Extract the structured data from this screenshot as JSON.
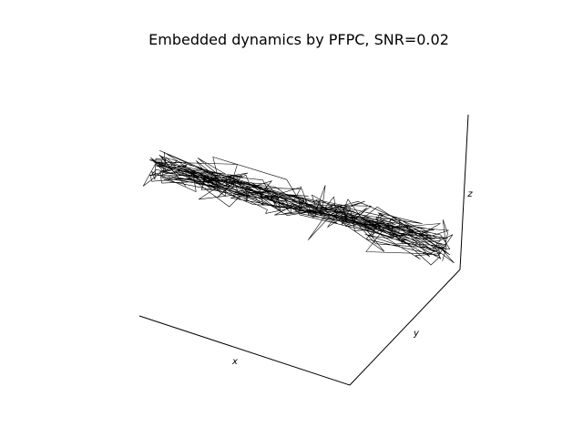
{
  "chart_data": {
    "type": "line",
    "projection": "3d",
    "title": "Embedded dynamics by PFPC, SNR=0.02",
    "xlabel": "x",
    "ylabel": "y",
    "zlabel": "z",
    "grid": false,
    "series": [
      {
        "color": "#000000",
        "noise_scale": 0.35,
        "num_points": 360,
        "trend_start": [
          -1.0,
          -0.2,
          0.65
        ],
        "trend_end": [
          1.0,
          0.2,
          0.35
        ]
      }
    ]
  }
}
